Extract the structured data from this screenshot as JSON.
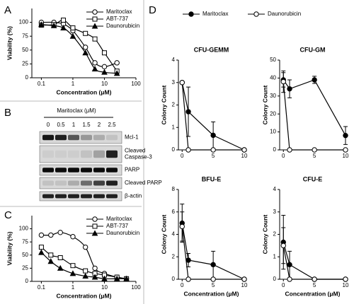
{
  "chart_data": [
    {
      "type": "line",
      "panel": "A",
      "xscale": "log",
      "line_style": "smooth",
      "xlabel": "Concentration (μM)",
      "ylabel": "Viability (%)",
      "x": [
        0.1,
        0.25,
        0.5,
        1,
        2.5,
        5,
        10,
        25
      ],
      "xlim": [
        0.05,
        100
      ],
      "xticks": [
        0.1,
        1,
        10,
        100
      ],
      "ylim": [
        0,
        125
      ],
      "yticks": [
        0,
        25,
        50,
        75,
        100
      ],
      "legend": "top-right",
      "series": [
        {
          "name": "Maritoclax",
          "color": "#000000",
          "marker": "open-circle",
          "values": [
            100,
            100,
            97,
            85,
            55,
            27,
            20,
            27
          ]
        },
        {
          "name": "ABT-737",
          "color": "#000000",
          "marker": "open-square",
          "values": [
            95,
            96,
            104,
            90,
            80,
            70,
            45,
            12
          ]
        },
        {
          "name": "Daunorubicin",
          "color": "#000000",
          "marker": "filled-triangle",
          "values": [
            96,
            94,
            90,
            75,
            45,
            16,
            10,
            8
          ]
        }
      ]
    },
    {
      "type": "line",
      "panel": "C",
      "xscale": "log",
      "line_style": "smooth",
      "xlabel": "Concentration (μM)",
      "ylabel": "Viability (%)",
      "x": [
        0.1,
        0.2,
        0.4,
        1,
        2.5,
        5,
        10,
        25,
        50
      ],
      "xlim": [
        0.05,
        100
      ],
      "xticks": [
        0.1,
        1,
        10,
        100
      ],
      "ylim": [
        0,
        125
      ],
      "yticks": [
        0,
        25,
        50,
        75,
        100
      ],
      "legend": "top-right",
      "series": [
        {
          "name": "Maritoclax",
          "color": "#000000",
          "marker": "open-circle",
          "values": [
            88,
            88,
            93,
            85,
            65,
            25,
            15,
            8,
            5
          ]
        },
        {
          "name": "ABT-737",
          "color": "#000000",
          "marker": "open-square",
          "values": [
            65,
            50,
            45,
            30,
            20,
            15,
            12,
            8,
            5
          ]
        },
        {
          "name": "Daunorubicin",
          "color": "#000000",
          "marker": "filled-triangle",
          "values": [
            55,
            38,
            25,
            15,
            10,
            8,
            5,
            5,
            5
          ]
        }
      ]
    },
    {
      "type": "line",
      "panel": "D",
      "title": "CFU-GEMM",
      "line_style": "straight",
      "ylabel": "Colony Count",
      "legend": "above",
      "x": [
        0,
        1,
        5,
        10
      ],
      "xlim": [
        -0.6,
        10
      ],
      "xticks": [
        0,
        5,
        10
      ],
      "ylim": [
        0,
        4
      ],
      "yticks": [
        0,
        1,
        2,
        3,
        4
      ],
      "series": [
        {
          "name": "Maritoclax",
          "color": "#000000",
          "marker": "filled-circle",
          "values": [
            3,
            1.7,
            0.65,
            0
          ],
          "errors": [
            0,
            1.1,
            0.6,
            0
          ]
        },
        {
          "name": "Daunorubicin",
          "color": "#000000",
          "marker": "open-circle",
          "values": [
            3,
            0,
            0,
            0
          ],
          "errors": [
            0,
            0,
            0,
            0
          ]
        }
      ]
    },
    {
      "type": "line",
      "title": "CFU-GM",
      "line_style": "straight",
      "ylabel": "Colony Count",
      "x": [
        0,
        1,
        5,
        10
      ],
      "xlim": [
        -0.6,
        10
      ],
      "xticks": [
        0,
        5,
        10
      ],
      "ylim": [
        0,
        50
      ],
      "yticks": [
        0,
        10,
        20,
        30,
        40,
        50
      ],
      "series": [
        {
          "color": "#000000",
          "marker": "filled-circle",
          "values": [
            39,
            34,
            39,
            8
          ],
          "errors": [
            4,
            5,
            2,
            5
          ]
        },
        {
          "color": "#000000",
          "marker": "open-circle",
          "values": [
            38,
            0,
            0,
            0
          ],
          "errors": [
            6,
            0,
            0,
            0
          ]
        }
      ]
    },
    {
      "type": "line",
      "title": "BFU-E",
      "line_style": "straight",
      "ylabel": "Colony Count",
      "xlabel": "Concentration (μM)",
      "x": [
        0,
        1,
        5,
        10
      ],
      "xlim": [
        -0.6,
        10
      ],
      "xticks": [
        0,
        5,
        10
      ],
      "ylim": [
        0,
        8
      ],
      "yticks": [
        0,
        2,
        4,
        6,
        8
      ],
      "series": [
        {
          "color": "#000000",
          "marker": "filled-circle",
          "values": [
            5,
            1.7,
            1.3,
            0
          ],
          "errors": [
            1.7,
            0.6,
            1.2,
            0
          ]
        },
        {
          "color": "#000000",
          "marker": "open-circle",
          "values": [
            4.7,
            0,
            0,
            0
          ],
          "errors": [
            1.3,
            0,
            0,
            0
          ]
        }
      ]
    },
    {
      "type": "line",
      "title": "CFU-E",
      "line_style": "straight",
      "ylabel": "Colony Count",
      "xlabel": "Concentration (μM)",
      "x": [
        0,
        1,
        5,
        10
      ],
      "xlim": [
        -0.6,
        10
      ],
      "xticks": [
        0,
        5,
        10
      ],
      "ylim": [
        0,
        4
      ],
      "yticks": [
        0,
        1,
        2,
        3,
        4
      ],
      "series": [
        {
          "color": "#000000",
          "marker": "filled-circle",
          "values": [
            1.65,
            0.65,
            0,
            0
          ],
          "errors": [
            1.2,
            0.6,
            0,
            0
          ]
        },
        {
          "color": "#000000",
          "marker": "open-circle",
          "values": [
            1.5,
            0,
            0,
            0
          ],
          "errors": [
            0.8,
            0,
            0,
            0
          ]
        }
      ]
    }
  ],
  "blot": {
    "panel": "B",
    "title": "Maritoclax (μM)",
    "lanes": [
      0,
      0.5,
      1,
      1.5,
      2,
      2.5
    ],
    "rows": [
      [
        "Mcl-1"
      ],
      [
        "Cleaved",
        "Caspase-3"
      ],
      [
        "PARP"
      ],
      [
        "Cleaved PARP"
      ],
      [
        "β-actin"
      ]
    ]
  }
}
